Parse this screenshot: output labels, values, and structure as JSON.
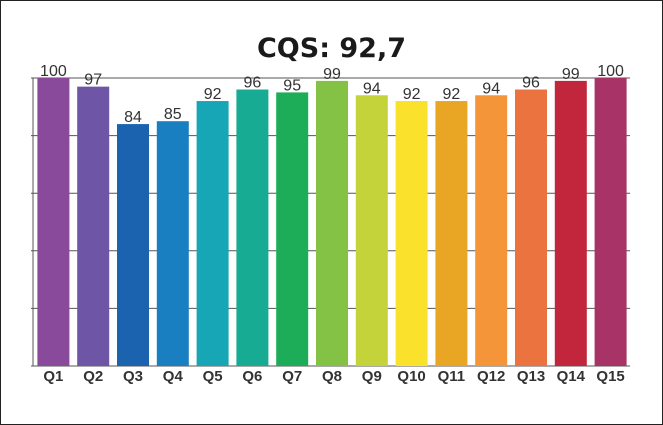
{
  "chart_data": {
    "type": "bar",
    "title": "CQS: 92,7",
    "xlabel": "",
    "ylabel": "",
    "categories": [
      "Q1",
      "Q2",
      "Q3",
      "Q4",
      "Q5",
      "Q6",
      "Q7",
      "Q8",
      "Q9",
      "Q10",
      "Q11",
      "Q12",
      "Q13",
      "Q14",
      "Q15"
    ],
    "values": [
      100,
      97,
      84,
      85,
      92,
      96,
      95,
      99,
      94,
      92,
      92,
      94,
      96,
      99,
      100
    ],
    "ylim": [
      0,
      100
    ],
    "grid": true,
    "legend": "none",
    "colors": [
      "#8a4a9b",
      "#6e55a5",
      "#1b63ae",
      "#1a7fc0",
      "#17a6b6",
      "#17ab93",
      "#1dad59",
      "#83c245",
      "#c5d33a",
      "#fae12c",
      "#e9a624",
      "#f4953a",
      "#eb7340",
      "#c1263c",
      "#a83467"
    ]
  }
}
